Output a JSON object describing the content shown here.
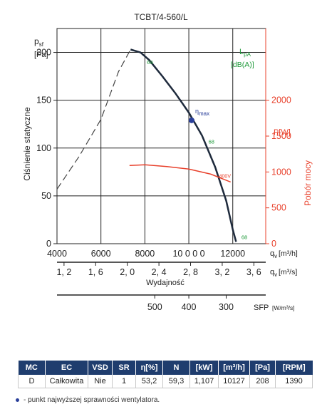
{
  "chart_data": {
    "type": "line",
    "title": "TCBT/4-560/L",
    "ylabel_unit_top": "p",
    "ylabel_unit_sub": "sf",
    "ylabel_unit": "[Pa]",
    "ylabel": "Ciśnienie statyczne",
    "y2label": "Pobór mocy",
    "y2unit": "P[W]",
    "noise_label": "L",
    "noise_label_sub": "pA",
    "noise_unit": "[dB(A)]",
    "xlabel": "Wydajność",
    "x_unit_m3h": "q",
    "x_unit_m3h_sub": "v",
    "x_unit_m3h_txt": "[m³/h]",
    "x_unit_m3s": "q",
    "x_unit_m3s_sub": "v",
    "x_unit_m3s_txt": "[m³/s]",
    "sfp_label": "SFP",
    "sfp_unit": "[W/m³/s]",
    "xlim": [
      4000,
      13500
    ],
    "ylim": [
      0,
      225
    ],
    "y2lim": [
      0,
      3000
    ],
    "x_ticks": [
      {
        "v": 4000,
        "label": "4000"
      },
      {
        "v": 6000,
        "label": "6000"
      },
      {
        "v": 8000,
        "label": "8000"
      },
      {
        "v": 10000,
        "label": "10 0 0 0"
      },
      {
        "v": 12000,
        "label": "12000"
      }
    ],
    "y_ticks": [
      0,
      50,
      100,
      150,
      200
    ],
    "y2_ticks": [
      0,
      500,
      1000,
      1500,
      2000
    ],
    "m3s_ticks": [
      {
        "v": 1.2,
        "label": "1, 2"
      },
      {
        "v": 1.6,
        "label": "1, 6"
      },
      {
        "v": 2.0,
        "label": "2, 0"
      },
      {
        "v": 2.4,
        "label": "2, 4"
      },
      {
        "v": 2.8,
        "label": "2, 8"
      },
      {
        "v": 3.2,
        "label": "3, 2"
      },
      {
        "v": 3.6,
        "label": "3, 6"
      }
    ],
    "sfp_ticks": [
      {
        "v": 500,
        "x": 8450,
        "label": "500"
      },
      {
        "v": 400,
        "x": 10000,
        "label": "400"
      },
      {
        "v": 300,
        "x": 11700,
        "label": "300"
      }
    ],
    "series": [
      {
        "name": "pressure-unstable",
        "style": "dashed",
        "points": [
          [
            4000,
            57
          ],
          [
            5000,
            91
          ],
          [
            6000,
            130
          ],
          [
            6800,
            180
          ],
          [
            7350,
            203
          ]
        ]
      },
      {
        "name": "pressure",
        "style": "solid",
        "points": [
          [
            7350,
            203
          ],
          [
            7800,
            200
          ],
          [
            8200,
            192
          ],
          [
            8800,
            175
          ],
          [
            9400,
            157
          ],
          [
            10000,
            137
          ],
          [
            10600,
            113
          ],
          [
            11200,
            80
          ],
          [
            11700,
            45
          ],
          [
            12000,
            15
          ],
          [
            12150,
            2
          ]
        ]
      },
      {
        "name": "400V",
        "style": "solid",
        "points": [
          [
            7300,
            1090
          ],
          [
            8000,
            1100
          ],
          [
            9000,
            1075
          ],
          [
            10000,
            1040
          ],
          [
            11000,
            970
          ],
          [
            11900,
            860
          ]
        ]
      }
    ],
    "series_label_400v": "400V",
    "eta_max": {
      "x": 10127,
      "y": 129,
      "label": "η",
      "label_sub": "max"
    },
    "noise_values": [
      {
        "label": "69",
        "x": 7900,
        "y": 190
      },
      {
        "label": "68",
        "x": 10700,
        "y": 107
      },
      {
        "label": "68",
        "x": 12200,
        "y": 7
      }
    ],
    "grid": true
  },
  "table": {
    "headers": [
      "MC",
      "EC",
      "VSD",
      "SR",
      "η[%]",
      "N",
      "[kW]",
      "[m³/h]",
      "[Pa]",
      "[RPM]"
    ],
    "row": [
      "D",
      "Całkowita",
      "Nie",
      "1",
      "53,2",
      "59,3",
      "1,107",
      "10127",
      "208",
      "1390"
    ]
  },
  "footnote": "- punkt najwyższej sprawności wentylatora."
}
